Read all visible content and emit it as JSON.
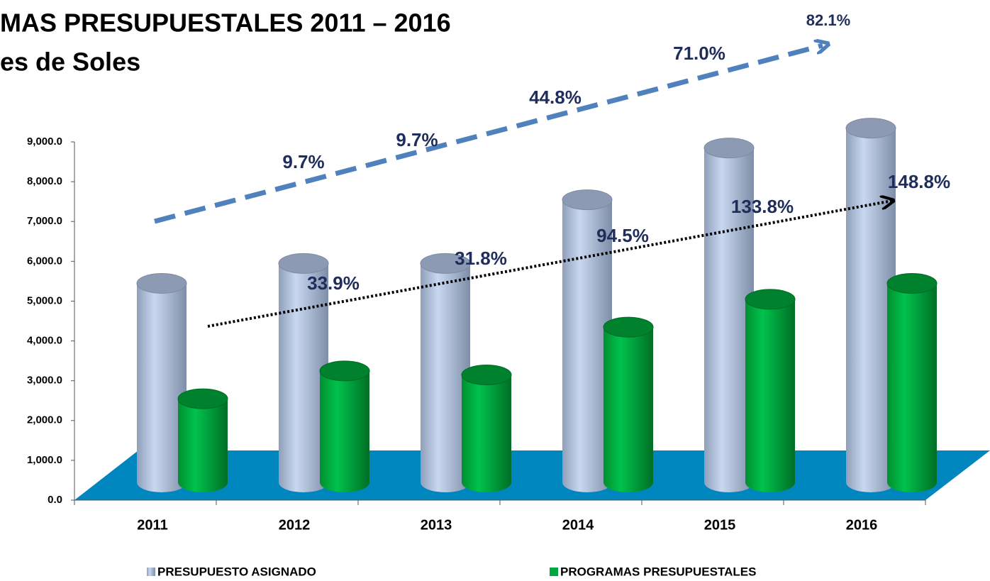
{
  "chart_data": {
    "type": "bar3d",
    "title": "MAS PRESUPUESTALES 2011 – 2016",
    "subtitle": "es de Soles",
    "categories": [
      "2011",
      "2012",
      "2013",
      "2014",
      "2015",
      "2016"
    ],
    "series": [
      {
        "name": "PRESUPUESTO ASIGNADO",
        "color": "#a9bcdc",
        "values": [
          5000,
          5500,
          5500,
          7100,
          8400,
          8900
        ]
      },
      {
        "name": "PROGRAMAS PRESUPUESTALES",
        "color": "#00a640",
        "values": [
          2100,
          2800,
          2700,
          3900,
          4600,
          5000
        ]
      }
    ],
    "annotations": {
      "presupuesto": [
        "9.7%",
        "9.7%",
        "44.8%",
        "71.0%",
        "82.1%"
      ],
      "programas": [
        "33.9%",
        "31.8%",
        "94.5%",
        "133.8%",
        "148.8%"
      ]
    },
    "ylim": [
      0,
      9000
    ],
    "yticks": [
      {
        "value": 0,
        "label": "0.0"
      },
      {
        "value": 1000,
        "label": "1,000.0"
      },
      {
        "value": 2000,
        "label": "2,000.0"
      },
      {
        "value": 3000,
        "label": "3,000.0"
      },
      {
        "value": 4000,
        "label": "4,000.0"
      },
      {
        "value": 5000,
        "label": "5,000.0"
      },
      {
        "value": 6000,
        "label": "6,000.0"
      },
      {
        "value": 7000,
        "label": "7,000.0"
      },
      {
        "value": 8000,
        "label": "8,000.0"
      },
      {
        "value": 9000,
        "label": "9,000.0"
      }
    ],
    "floor_color": "#0086bf"
  }
}
